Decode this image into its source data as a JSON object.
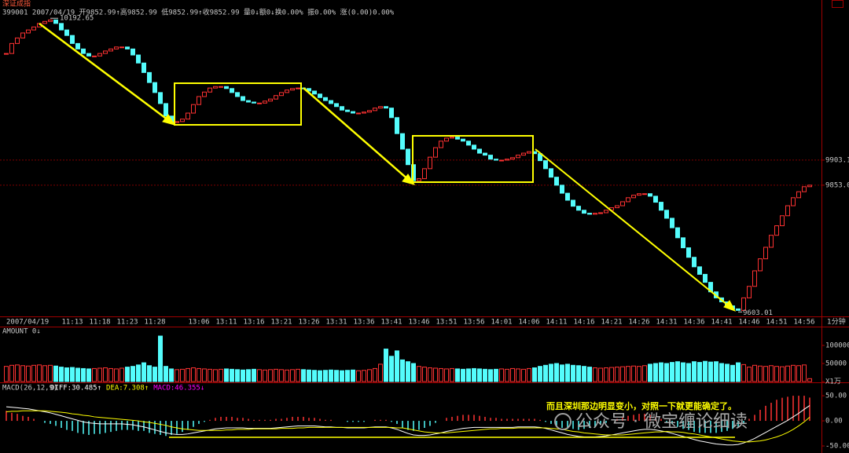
{
  "chart_data": [
    {
      "type": "candlestick",
      "title": "深证成指",
      "subtitle": "399001 2007/04/19 开9852.99↑高9852.99 低9852.99↑收9852.99 量0↓额0↓换0.00% 振0.00% 涨(0.00)0.00%",
      "period": "1分钟",
      "categories": [
        "2007/04/19",
        null,
        null,
        null,
        null,
        null,
        null,
        null,
        null,
        null,
        null,
        null,
        "11:13",
        null,
        null,
        null,
        null,
        "11:18",
        null,
        null,
        null,
        null,
        "11:23",
        null,
        null,
        null,
        null,
        "11:28",
        null,
        null,
        null,
        null,
        null,
        null,
        null,
        "13:06",
        null,
        null,
        null,
        null,
        "13:11",
        null,
        null,
        null,
        null,
        "13:16",
        null,
        null,
        null,
        null,
        "13:21",
        null,
        null,
        null,
        null,
        "13:26",
        null,
        null,
        null,
        null,
        "13:31",
        null,
        null,
        null,
        null,
        "13:36",
        null,
        null,
        null,
        null,
        "13:41",
        null,
        null,
        null,
        null,
        "13:46",
        null,
        null,
        null,
        null,
        "13:51",
        null,
        null,
        null,
        null,
        "13:56",
        null,
        null,
        null,
        null,
        "14:01",
        null,
        null,
        null,
        null,
        "14:06",
        null,
        null,
        null,
        null,
        "14:11",
        null,
        null,
        null,
        null,
        "14:16",
        null,
        null,
        null,
        null,
        "14:21",
        null,
        null,
        null,
        null,
        "14:26",
        null,
        null,
        null,
        null,
        "14:31",
        null,
        null,
        null,
        null,
        "14:36",
        null,
        null,
        null,
        null,
        "14:41",
        null,
        null,
        null,
        null,
        "14:46",
        null,
        null,
        null,
        null,
        "14:51",
        null,
        null,
        null,
        null,
        "14:56",
        null
      ],
      "values": [
        10116,
        10136,
        10147,
        10157,
        10163,
        10169,
        10176,
        10180,
        10183,
        10176,
        10163,
        10152,
        10136,
        10125,
        10116,
        10111,
        10111,
        10116,
        10121,
        10125,
        10129,
        10129,
        10125,
        10113,
        10097,
        10078,
        10058,
        10038,
        10016,
        9991,
        9978,
        9980,
        9985,
        9997,
        10014,
        10030,
        10039,
        10047,
        10050,
        10050,
        10046,
        10038,
        10030,
        10022,
        10019,
        10017,
        10017,
        10021,
        10025,
        10032,
        10038,
        10043,
        10046,
        10047,
        10046,
        10041,
        10035,
        10028,
        10022,
        10016,
        10010,
        10003,
        10000,
        9997,
        9997,
        9999,
        10002,
        10007,
        10010,
        10007,
        9988,
        9956,
        9925,
        9894,
        9862,
        9866,
        9886,
        9909,
        9928,
        9941,
        9947,
        9949,
        9945,
        9941,
        9933,
        9925,
        9917,
        9913,
        9905,
        9903,
        9903,
        9905,
        9908,
        9913,
        9917,
        9920,
        9916,
        9902,
        9886,
        9869,
        9853,
        9837,
        9823,
        9811,
        9803,
        9797,
        9795,
        9797,
        9798,
        9803,
        9808,
        9812,
        9820,
        9828,
        9833,
        9836,
        9836,
        9831,
        9819,
        9803,
        9787,
        9768,
        9748,
        9728,
        9709,
        9690,
        9675,
        9659,
        9640,
        9628,
        9620,
        9612,
        9606,
        9603.01,
        9628,
        9651,
        9682,
        9706,
        9729,
        9753,
        9772,
        9792,
        9812,
        9828,
        9840,
        9850,
        9852.99
      ],
      "high": 10192.65,
      "low": 9603.01,
      "ylim": [
        9591,
        10204
      ],
      "yticks": [
        9903.1,
        {
          "value": 9853,
          "label": "9853.0"
        }
      ],
      "grid": true,
      "up_color": "#ff3232",
      "down_color": "#54fcfc"
    },
    {
      "type": "bar",
      "title": "AMOUNT 0↓",
      "values": [
        42000,
        45000,
        46000,
        44000,
        43000,
        45000,
        46000,
        44000,
        45000,
        43000,
        40000,
        38000,
        39000,
        37000,
        36000,
        35000,
        36000,
        37000,
        38000,
        36000,
        35000,
        37000,
        40000,
        42000,
        46000,
        52000,
        44000,
        40000,
        126000,
        42000,
        35000,
        33000,
        34000,
        36000,
        38000,
        36000,
        35000,
        34000,
        33000,
        34000,
        35000,
        34000,
        33000,
        32000,
        33000,
        34000,
        33000,
        32000,
        33000,
        34000,
        33000,
        32000,
        33000,
        34000,
        33000,
        32000,
        31000,
        30000,
        31000,
        32000,
        31000,
        30000,
        31000,
        32000,
        30000,
        31000,
        33000,
        36000,
        48000,
        90000,
        70000,
        85000,
        60000,
        55000,
        50000,
        42000,
        40000,
        38000,
        37000,
        36000,
        35000,
        36000,
        35000,
        34000,
        35000,
        36000,
        35000,
        34000,
        33000,
        34000,
        35000,
        34000,
        36000,
        35000,
        34000,
        36000,
        38000,
        42000,
        45000,
        48000,
        50000,
        46000,
        48000,
        45000,
        44000,
        42000,
        40000,
        38000,
        37000,
        38000,
        39000,
        40000,
        41000,
        42000,
        43000,
        42000,
        44000,
        48000,
        50000,
        52000,
        50000,
        53000,
        55000,
        52000,
        50000,
        55000,
        53000,
        56000,
        54000,
        55000,
        50000,
        48000,
        45000,
        52000,
        47000,
        40000,
        45000,
        43000,
        42000,
        44000,
        42000,
        41000,
        43000,
        45000,
        44000,
        46000,
        8000
      ],
      "ylim": [
        0,
        150000
      ],
      "yticks": [
        100000,
        50000,
        {
          "value": 0,
          "label": "X1万"
        }
      ]
    },
    {
      "type": "macd",
      "title": "MACD(26,12,9)",
      "readouts": [
        "DIFF:30.485↑",
        "DEA:7.308↑",
        "MACD:46.355↓"
      ],
      "series": [
        {
          "color": "#ffffff",
          "values": [
            28,
            27,
            26,
            25,
            24,
            22,
            20,
            18,
            16,
            13,
            10,
            7,
            4,
            1,
            -2,
            -4,
            -5,
            -6,
            -6,
            -6,
            -6,
            -6,
            -7,
            -8,
            -10,
            -12,
            -15,
            -18,
            -21,
            -24,
            -26,
            -27,
            -27,
            -26,
            -24,
            -22,
            -20,
            -18,
            -16,
            -15,
            -14,
            -14,
            -14,
            -14,
            -15,
            -15,
            -15,
            -15,
            -15,
            -14,
            -13,
            -12,
            -11,
            -10,
            -10,
            -10,
            -10,
            -11,
            -12,
            -12,
            -13,
            -13,
            -14,
            -14,
            -14,
            -14,
            -13,
            -12,
            -12,
            -12,
            -14,
            -17,
            -21,
            -25,
            -28,
            -29,
            -29,
            -28,
            -26,
            -24,
            -21,
            -19,
            -17,
            -15,
            -14,
            -13,
            -13,
            -13,
            -13,
            -13,
            -13,
            -13,
            -13,
            -12,
            -12,
            -12,
            -12,
            -13,
            -15,
            -18,
            -21,
            -24,
            -27,
            -29,
            -31,
            -32,
            -32,
            -32,
            -31,
            -30,
            -28,
            -26,
            -24,
            -22,
            -20,
            -18,
            -17,
            -17,
            -18,
            -20,
            -22,
            -25,
            -28,
            -31,
            -34,
            -37,
            -40,
            -42,
            -44,
            -46,
            -47,
            -48,
            -48,
            -47,
            -44,
            -40,
            -35,
            -29,
            -23,
            -17,
            -11,
            -5,
            1,
            8,
            15,
            23,
            30.485
          ]
        },
        {
          "color": "#ffff00",
          "values": [
            18,
            19,
            19,
            20,
            20,
            20,
            20,
            20,
            19,
            18,
            17,
            16,
            14,
            13,
            11,
            10,
            8,
            7,
            6,
            5,
            4,
            3,
            2,
            1,
            0,
            -2,
            -3,
            -5,
            -7,
            -9,
            -12,
            -14,
            -16,
            -17,
            -18,
            -19,
            -19,
            -19,
            -19,
            -19,
            -18,
            -18,
            -17,
            -17,
            -17,
            -16,
            -16,
            -16,
            -16,
            -16,
            -15,
            -15,
            -15,
            -14,
            -14,
            -13,
            -13,
            -13,
            -13,
            -13,
            -13,
            -13,
            -13,
            -13,
            -13,
            -13,
            -13,
            -13,
            -13,
            -13,
            -13,
            -14,
            -14,
            -16,
            -18,
            -20,
            -22,
            -23,
            -24,
            -24,
            -24,
            -23,
            -22,
            -21,
            -20,
            -19,
            -18,
            -17,
            -16,
            -16,
            -15,
            -15,
            -15,
            -14,
            -14,
            -14,
            -14,
            -14,
            -14,
            -15,
            -16,
            -17,
            -19,
            -21,
            -22,
            -24,
            -25,
            -26,
            -27,
            -28,
            -28,
            -28,
            -28,
            -27,
            -26,
            -25,
            -24,
            -23,
            -22,
            -22,
            -21,
            -22,
            -22,
            -23,
            -25,
            -26,
            -28,
            -30,
            -32,
            -34,
            -36,
            -38,
            -40,
            -41,
            -42,
            -42,
            -41,
            -40,
            -38,
            -35,
            -32,
            -28,
            -23,
            -17,
            -10,
            -2,
            7.308
          ]
        },
        {
          "color": "#ff00ff",
          "values": [
            20,
            16,
            14,
            10,
            8,
            4,
            0,
            -4,
            -6,
            -10,
            -14,
            -18,
            -20,
            -24,
            -26,
            -28,
            -26,
            -26,
            -24,
            -22,
            -20,
            -18,
            -18,
            -18,
            -20,
            -20,
            -24,
            -26,
            -28,
            -30,
            -28,
            -26,
            -22,
            -18,
            -12,
            -6,
            -2,
            2,
            6,
            8,
            8,
            8,
            6,
            6,
            4,
            2,
            2,
            2,
            2,
            4,
            4,
            6,
            8,
            8,
            8,
            6,
            6,
            4,
            2,
            2,
            0,
            0,
            -2,
            -2,
            -2,
            -2,
            0,
            2,
            2,
            2,
            -2,
            -6,
            -14,
            -18,
            -20,
            -18,
            -14,
            -10,
            -4,
            0,
            6,
            8,
            10,
            12,
            12,
            12,
            10,
            8,
            6,
            6,
            4,
            4,
            4,
            4,
            4,
            4,
            4,
            2,
            -2,
            -6,
            -10,
            -14,
            -16,
            -16,
            -18,
            -16,
            -14,
            -12,
            -8,
            -4,
            0,
            4,
            8,
            10,
            12,
            14,
            14,
            12,
            8,
            4,
            -2,
            -6,
            -12,
            -16,
            -18,
            -22,
            -24,
            -24,
            -24,
            -24,
            -22,
            -20,
            -16,
            -12,
            -4,
            4,
            12,
            22,
            30,
            36,
            42,
            46,
            48,
            50,
            50,
            50,
            46.355
          ]
        }
      ],
      "ylim": [
        -64,
        72
      ],
      "yticks": [
        {
          "value": 50,
          "label": "50.00"
        },
        {
          "value": 0,
          "label": "0.00"
        },
        {
          "value": -50,
          "label": "-50.00"
        }
      ],
      "annotation": "而且深圳那边明显变小，对照一下就更能确定了。",
      "watermark": "公众号 · 微宝缠论细读"
    }
  ]
}
